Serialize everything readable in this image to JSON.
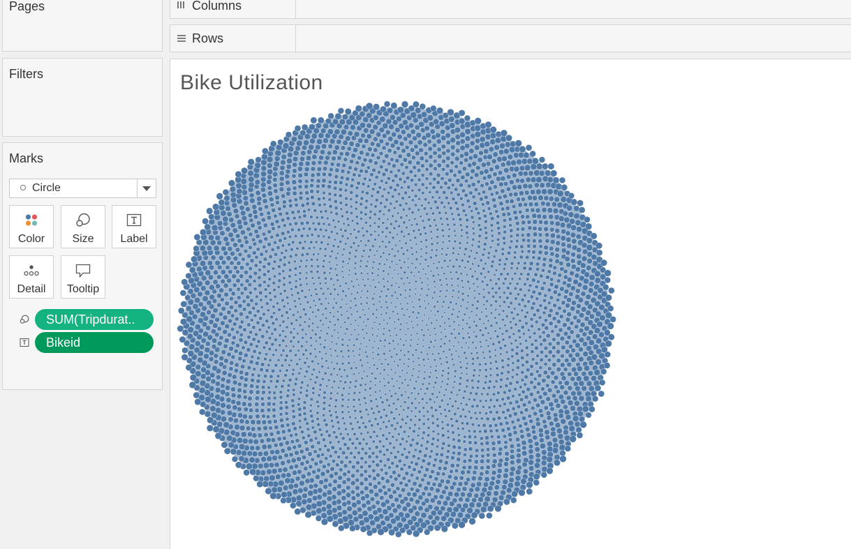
{
  "left_panel": {
    "pages_title": "Pages",
    "filters_title": "Filters",
    "marks": {
      "title": "Marks",
      "mark_type": "Circle",
      "buttons": {
        "color": "Color",
        "size": "Size",
        "label": "Label",
        "detail": "Detail",
        "tooltip": "Tooltip"
      },
      "pills": [
        {
          "text": "SUM(Tripdurat..",
          "encoding": "size",
          "icon": "size-icon",
          "color": "#13b280"
        },
        {
          "text": "Bikeid",
          "encoding": "label",
          "icon": "label-icon",
          "color": "#00995c"
        }
      ]
    }
  },
  "shelves": {
    "columns": {
      "label": "Columns",
      "icon": "columns-icon"
    },
    "rows": {
      "label": "Rows",
      "icon": "rows-icon"
    }
  },
  "viz": {
    "title": "Bike Utilization",
    "mark_color": "#4e79a7"
  },
  "chart_data": {
    "type": "scatter"
  }
}
